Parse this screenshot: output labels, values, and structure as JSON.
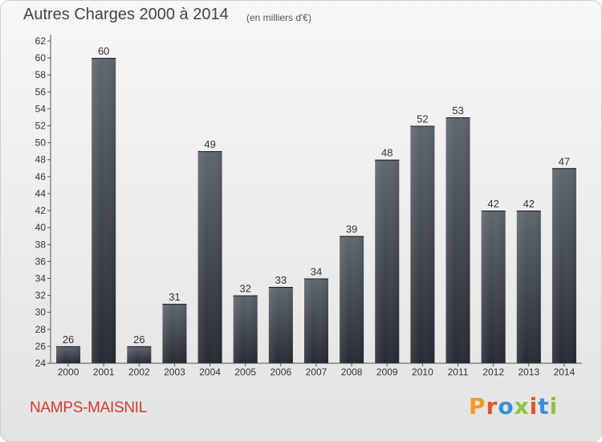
{
  "header": {
    "title": "Autres Charges 2000 à 2014",
    "subtitle": "(en milliers d'€)"
  },
  "footer": {
    "commune": "NAMPS-MAISNIL",
    "logo_text": "Proxiti"
  },
  "colors": {
    "bar_top": "#5f6670",
    "bar_bottom": "#262b33",
    "title": "#454545",
    "commune": "#d63a2f",
    "logo": [
      "#f39b1f",
      "#e65323",
      "#3b8fd4",
      "#8cc63f",
      "#e65323",
      "#3b8fd4",
      "#8cc63f"
    ]
  },
  "chart_data": {
    "type": "bar",
    "title": "Autres Charges 2000 à 2014",
    "subtitle": "(en milliers d'€)",
    "categories": [
      "2000",
      "2001",
      "2002",
      "2003",
      "2004",
      "2005",
      "2006",
      "2007",
      "2008",
      "2009",
      "2010",
      "2011",
      "2012",
      "2013",
      "2014"
    ],
    "values": [
      26,
      60,
      26,
      31,
      49,
      32,
      33,
      34,
      39,
      48,
      52,
      53,
      42,
      42,
      47
    ],
    "ylim": [
      24,
      62
    ],
    "yticks": [
      24,
      26,
      28,
      30,
      32,
      34,
      36,
      38,
      40,
      42,
      44,
      46,
      48,
      50,
      52,
      54,
      56,
      58,
      60,
      62
    ],
    "xlabel": "",
    "ylabel": "",
    "grid": false,
    "legend": "none"
  }
}
